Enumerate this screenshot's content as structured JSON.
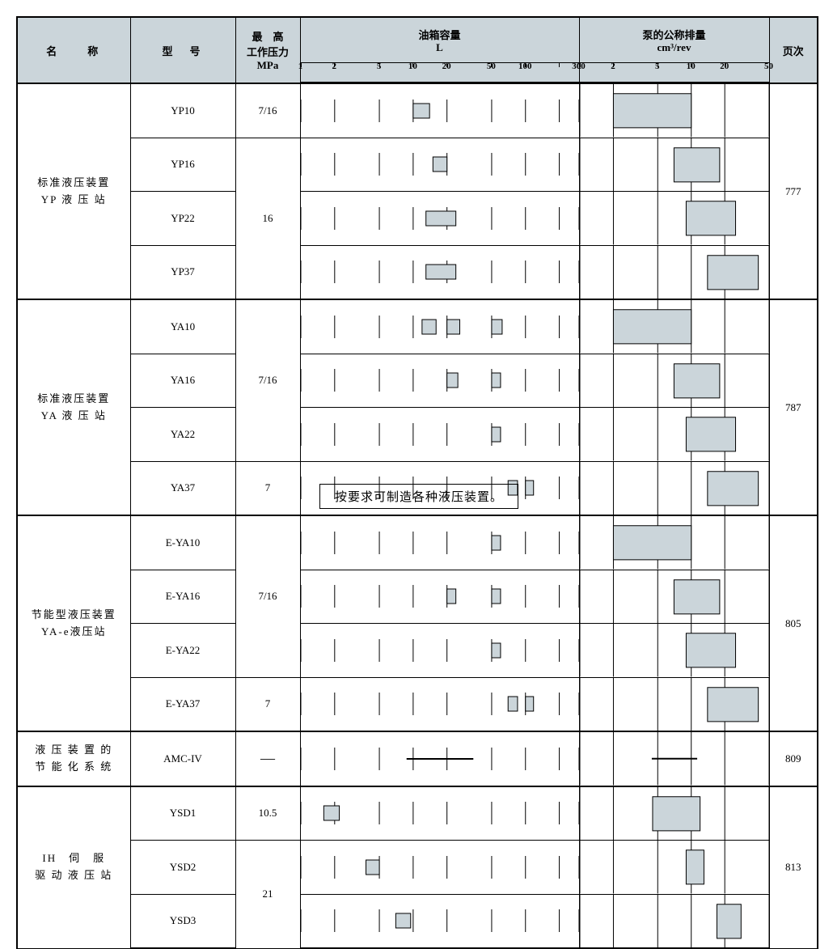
{
  "header": {
    "name": "名　　称",
    "model": "型　号",
    "press": {
      "l1": "最　高",
      "l2": "工作压力",
      "l3": "MPa"
    },
    "tank": {
      "title": "油箱容量",
      "unit": "L",
      "ticks": [
        1,
        2,
        5,
        10,
        20,
        50,
        100,
        300
      ],
      "min": 1,
      "max": 300
    },
    "pump": {
      "title": "泵的公称排量",
      "unit": "cm³/rev",
      "ticks": [
        1,
        2,
        5,
        10,
        20,
        50
      ],
      "min": 1,
      "max": 50
    },
    "page": "页次"
  },
  "groups": [
    {
      "name_lines": [
        "标准液压装置",
        "YP 液 压 站"
      ],
      "page": "777",
      "rows": [
        {
          "model": "YP10",
          "press": "7/16",
          "tank": [
            10,
            14
          ],
          "pump": [
            2,
            10
          ]
        },
        {
          "model": "YP16",
          "press": "",
          "tank": [
            15,
            20
          ],
          "pump": [
            7,
            18
          ]
        },
        {
          "model": "YP22",
          "press": "16",
          "tank": [
            13,
            24
          ],
          "pump": [
            9,
            25
          ]
        },
        {
          "model": "YP37",
          "press": "",
          "tank": [
            13,
            24
          ],
          "pump": [
            14,
            40
          ]
        }
      ],
      "press_spans": [
        [
          0,
          1
        ],
        [
          1,
          3
        ]
      ]
    },
    {
      "name_lines": [
        "标准液压装置",
        "YA 液 压 站"
      ],
      "page": "787",
      "rows": [
        {
          "model": "YA10",
          "press": "",
          "tank_multi": [
            [
              12,
              16
            ],
            [
              20,
              26
            ],
            [
              50,
              62
            ]
          ],
          "pump": [
            2,
            10
          ]
        },
        {
          "model": "YA16",
          "press": "7/16",
          "tank_multi": [
            [
              20,
              25
            ],
            [
              50,
              60
            ]
          ],
          "pump": [
            7,
            18
          ]
        },
        {
          "model": "YA22",
          "press": "",
          "tank_multi": [
            [
              50,
              60
            ]
          ],
          "pump": [
            9,
            25
          ]
        },
        {
          "model": "YA37",
          "press": "7",
          "tank_multi": [
            [
              70,
              85
            ],
            [
              100,
              118
            ]
          ],
          "pump": [
            14,
            40
          ]
        }
      ],
      "press_spans": [
        [
          0,
          3
        ],
        [
          3,
          1
        ]
      ]
    },
    {
      "name_lines": [
        "节能型液压装置",
        "YA-e液压站"
      ],
      "page": "805",
      "rows": [
        {
          "model": "E-YA10",
          "press": "",
          "tank_multi": [
            [
              50,
              60
            ]
          ],
          "pump": [
            2,
            10
          ]
        },
        {
          "model": "E-YA16",
          "press": "7/16",
          "tank_multi": [
            [
              20,
              24
            ],
            [
              50,
              60
            ]
          ],
          "pump": [
            7,
            18
          ]
        },
        {
          "model": "E-YA22",
          "press": "",
          "tank_multi": [
            [
              50,
              60
            ]
          ],
          "pump": [
            9,
            25
          ]
        },
        {
          "model": "E-YA37",
          "press": "7",
          "tank_multi": [
            [
              70,
              85
            ],
            [
              100,
              118
            ]
          ],
          "pump": [
            14,
            40
          ]
        }
      ],
      "press_spans": [
        [
          0,
          3
        ],
        [
          3,
          1
        ]
      ]
    },
    {
      "name_lines": [
        "液 压 装 置 的",
        "节 能 化 系 统"
      ],
      "page": "809",
      "single": true,
      "rows": [
        {
          "model": "AMC-IV",
          "press": "—",
          "tank_dash": true,
          "pump_dash": true
        }
      ]
    },
    {
      "name_lines": [
        "IH　伺　服",
        "驱 动 液 压 站"
      ],
      "page": "813",
      "rows": [
        {
          "model": "YSD1",
          "press": "10.5",
          "tank": [
            1.6,
            2.2
          ],
          "pump": [
            4.5,
            12
          ]
        },
        {
          "model": "YSD2",
          "press": "",
          "tank": [
            3.8,
            5
          ],
          "pump": [
            9,
            13
          ]
        },
        {
          "model": "YSD3",
          "press": "21",
          "tank": [
            7,
            9.5
          ],
          "pump": [
            17,
            28
          ]
        }
      ],
      "press_spans": [
        [
          0,
          1
        ],
        [
          1,
          2
        ]
      ]
    }
  ],
  "footnote": "按要求可制造各种液压装置。",
  "colors": {
    "headerbg": "#cbd5da",
    "barfill": "#cbd5da",
    "border": "#000000"
  },
  "tank_grid": [
    1,
    2,
    5,
    10,
    20,
    50,
    100,
    200,
    300
  ],
  "pump_grid": [
    1,
    2,
    5,
    10,
    20,
    50
  ]
}
